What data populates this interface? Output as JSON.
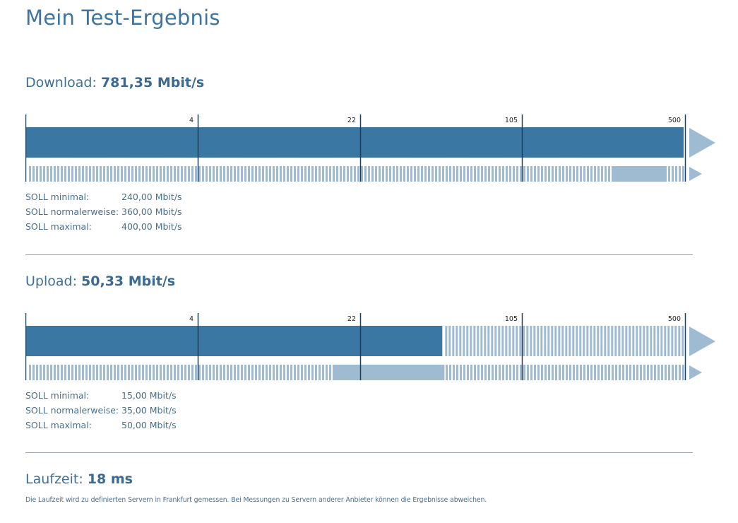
{
  "page": {
    "title": "Mein Test-Ergebnis"
  },
  "scale": {
    "ticks": [
      "4",
      "22",
      "105",
      "500"
    ]
  },
  "colors": {
    "bar": "#3b77a3",
    "light": "#9fbbd1",
    "line": "#1f3f5c"
  },
  "download": {
    "label": "Download:",
    "value": "781,35 Mbit/s",
    "measured_fraction": 1.0,
    "target_range_mbits": [
      240,
      400
    ],
    "soll": [
      {
        "label": "SOLL minimal:",
        "value": "240,00 Mbit/s"
      },
      {
        "label": "SOLL normalerweise:",
        "value": "360,00 Mbit/s"
      },
      {
        "label": "SOLL maximal:",
        "value": "400,00 Mbit/s"
      }
    ]
  },
  "upload": {
    "label": "Upload:",
    "value": "50,33 Mbit/s",
    "measured_mbits": 50.33,
    "target_range_mbits": [
      15,
      50
    ],
    "soll": [
      {
        "label": "SOLL minimal:",
        "value": "15,00 Mbit/s"
      },
      {
        "label": "SOLL normalerweise:",
        "value": "35,00 Mbit/s"
      },
      {
        "label": "SOLL maximal:",
        "value": "50,00 Mbit/s"
      }
    ]
  },
  "latency": {
    "label": "Laufzeit:",
    "value": "18 ms",
    "note": "Die Laufzeit wird zu definierten Servern in Frankfurt gemessen. Bei Messungen zu Servern anderer Anbieter können die Ergebnisse abweichen."
  }
}
